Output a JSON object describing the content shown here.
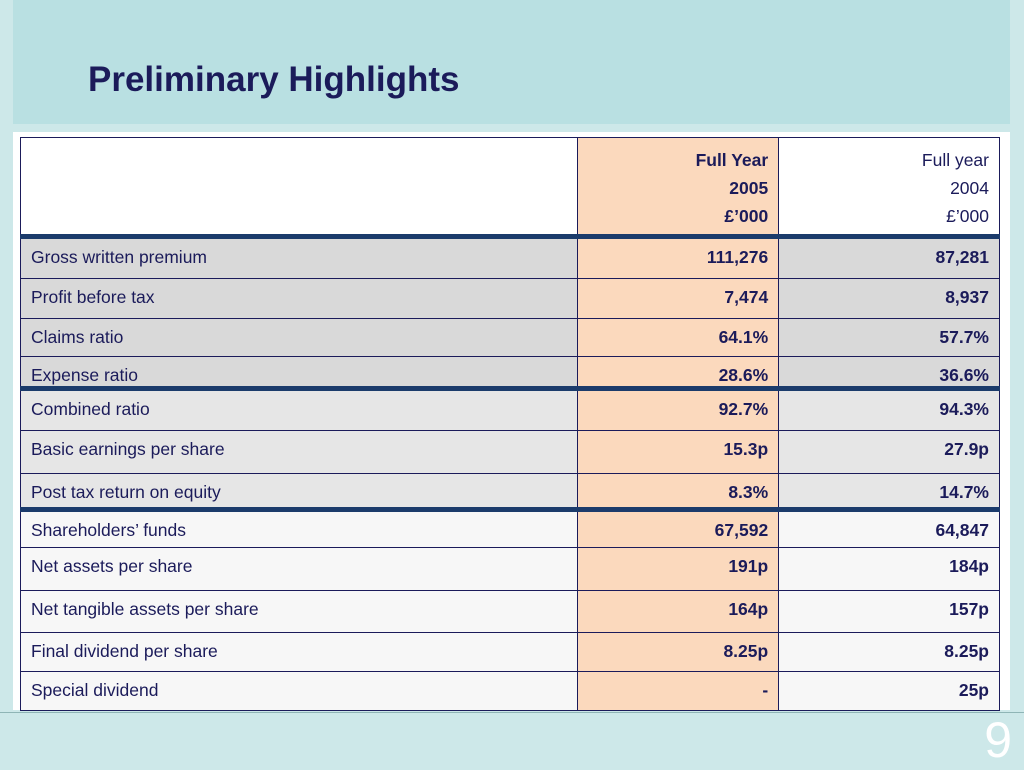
{
  "slide": {
    "title": "Preliminary Highlights",
    "page_number": "9"
  },
  "table": {
    "header": {
      "col_2005": [
        "Full Year",
        "2005",
        "£’000"
      ],
      "col_2004": [
        "Full year",
        "2004",
        "£’000"
      ]
    },
    "rows": [
      {
        "label": "Gross written premium",
        "v2005": "111,276",
        "v2004": "87,281"
      },
      {
        "label": "Profit before tax",
        "v2005": "7,474",
        "v2004": "8,937"
      },
      {
        "label": "Claims ratio",
        "v2005": "64.1%",
        "v2004": "57.7%"
      },
      {
        "label": "Expense ratio",
        "v2005": "28.6%",
        "v2004": "36.6%"
      },
      {
        "label": "Combined ratio",
        "v2005": "92.7%",
        "v2004": "94.3%"
      },
      {
        "label": "Basic earnings per share",
        "v2005": "15.3p",
        "v2004": "27.9p"
      },
      {
        "label": "Post tax return on equity",
        "v2005": "8.3%",
        "v2004": "14.7%"
      },
      {
        "label": "Shareholders’ funds",
        "v2005": "67,592",
        "v2004": "64,847"
      },
      {
        "label": "Net assets per share",
        "v2005": "191p",
        "v2004": "184p"
      },
      {
        "label": "Net tangible assets per share",
        "v2005": "164p",
        "v2004": "157p"
      },
      {
        "label": "Final dividend per share",
        "v2005": "8.25p",
        "v2004": "8.25p"
      },
      {
        "label": "Special dividend",
        "v2005": "-",
        "v2004": "25p"
      }
    ]
  },
  "colors": {
    "title_band": "#b9e0e2",
    "text": "#1b1b5a",
    "highlight_column": "#fbd9bd"
  }
}
